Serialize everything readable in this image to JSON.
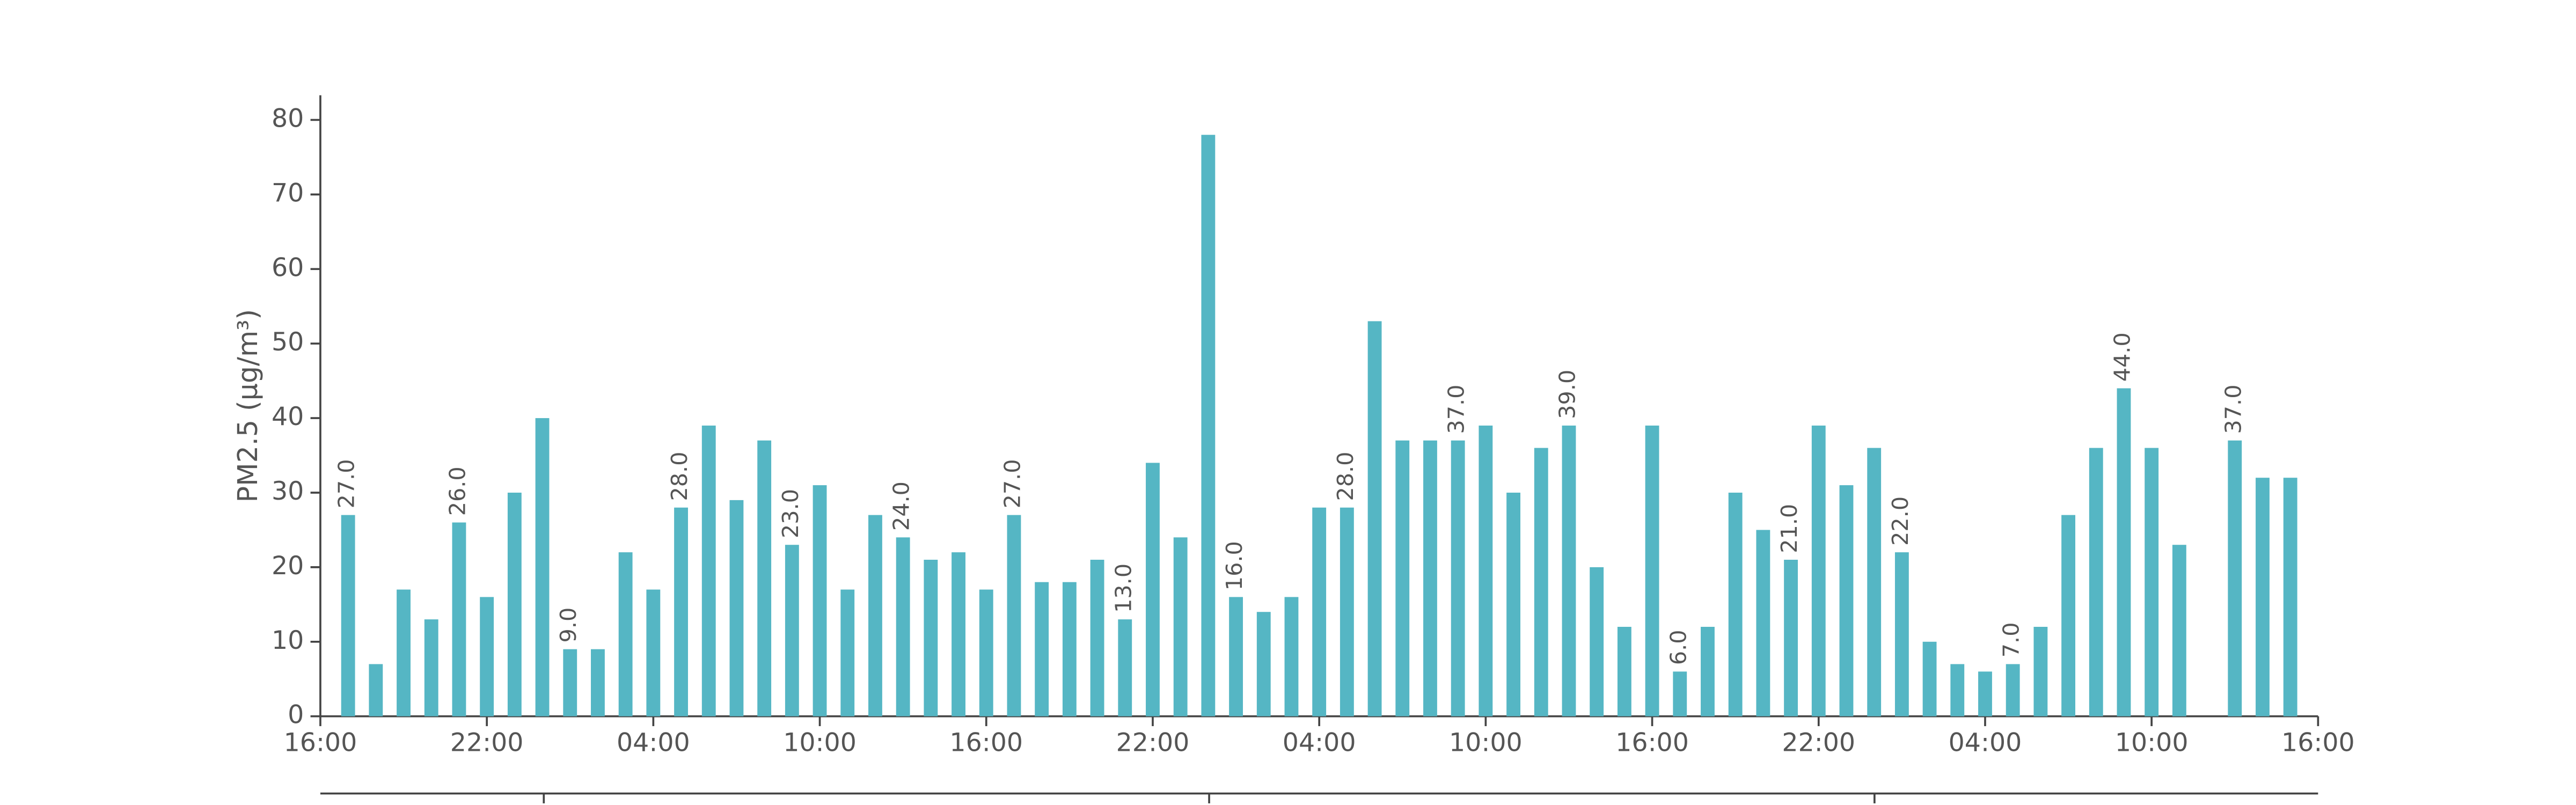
{
  "chart_data": {
    "type": "bar",
    "ylabel": "PM2.5 (μg/m³)",
    "color": "#55b6c4",
    "x": [
      1,
      2,
      3,
      4,
      5,
      6,
      7,
      8,
      9,
      10,
      11,
      12,
      13,
      14,
      15,
      16,
      17,
      18,
      19,
      20,
      21,
      22,
      23,
      24,
      25,
      26,
      27,
      28,
      29,
      30,
      31,
      32,
      33,
      34,
      35,
      36,
      37,
      38,
      39,
      40,
      41,
      42,
      43,
      44,
      45,
      46,
      47,
      48,
      49,
      50,
      51,
      52,
      53,
      54,
      55,
      56,
      57,
      58,
      59,
      60,
      61,
      62,
      63,
      64,
      65,
      66,
      67,
      68,
      69,
      70,
      71
    ],
    "values": [
      27,
      7,
      17,
      13,
      26,
      16,
      30,
      40,
      9,
      9,
      22,
      17,
      28,
      39,
      29,
      37,
      23,
      31,
      17,
      27,
      24,
      21,
      22,
      17,
      27,
      18,
      18,
      21,
      13,
      34,
      24,
      78,
      16,
      14,
      16,
      28,
      28,
      53,
      37,
      37,
      37,
      39,
      30,
      36,
      39,
      20,
      12,
      39,
      6,
      12,
      30,
      25,
      21,
      39,
      31,
      36,
      22,
      10,
      7,
      6,
      7,
      12,
      27,
      36,
      44,
      36,
      23,
      null,
      37,
      32,
      32
    ],
    "value_labels": [
      "27.0",
      null,
      null,
      null,
      "26.0",
      null,
      null,
      null,
      "9.0",
      null,
      null,
      null,
      "28.0",
      null,
      null,
      null,
      "23.0",
      null,
      null,
      null,
      "24.0",
      null,
      null,
      null,
      "27.0",
      null,
      null,
      null,
      "13.0",
      null,
      null,
      null,
      "16.0",
      null,
      null,
      null,
      "28.0",
      null,
      null,
      null,
      "37.0",
      null,
      null,
      null,
      "39.0",
      null,
      null,
      null,
      "6.0",
      null,
      null,
      null,
      "21.0",
      null,
      null,
      null,
      "22.0",
      null,
      null,
      null,
      "7.0",
      null,
      null,
      null,
      "44.0",
      null,
      null,
      null,
      "37.0",
      null,
      null
    ],
    "xlim": [
      0,
      72
    ],
    "xticks": [
      {
        "value": 0,
        "label": "16:00"
      },
      {
        "value": 6,
        "label": "22:00"
      },
      {
        "value": 12,
        "label": "04:00"
      },
      {
        "value": 18,
        "label": "10:00"
      },
      {
        "value": 24,
        "label": "16:00"
      },
      {
        "value": 30,
        "label": "22:00"
      },
      {
        "value": 36,
        "label": "04:00"
      },
      {
        "value": 42,
        "label": "10:00"
      },
      {
        "value": 48,
        "label": "16:00"
      },
      {
        "value": 54,
        "label": "22:00"
      },
      {
        "value": 60,
        "label": "04:00"
      },
      {
        "value": 66,
        "label": "10:00"
      },
      {
        "value": 72,
        "label": "16:00"
      }
    ],
    "ylim": [
      0,
      80
    ],
    "yticks": [
      0,
      10,
      20,
      30,
      40,
      50,
      60,
      70,
      80
    ]
  }
}
